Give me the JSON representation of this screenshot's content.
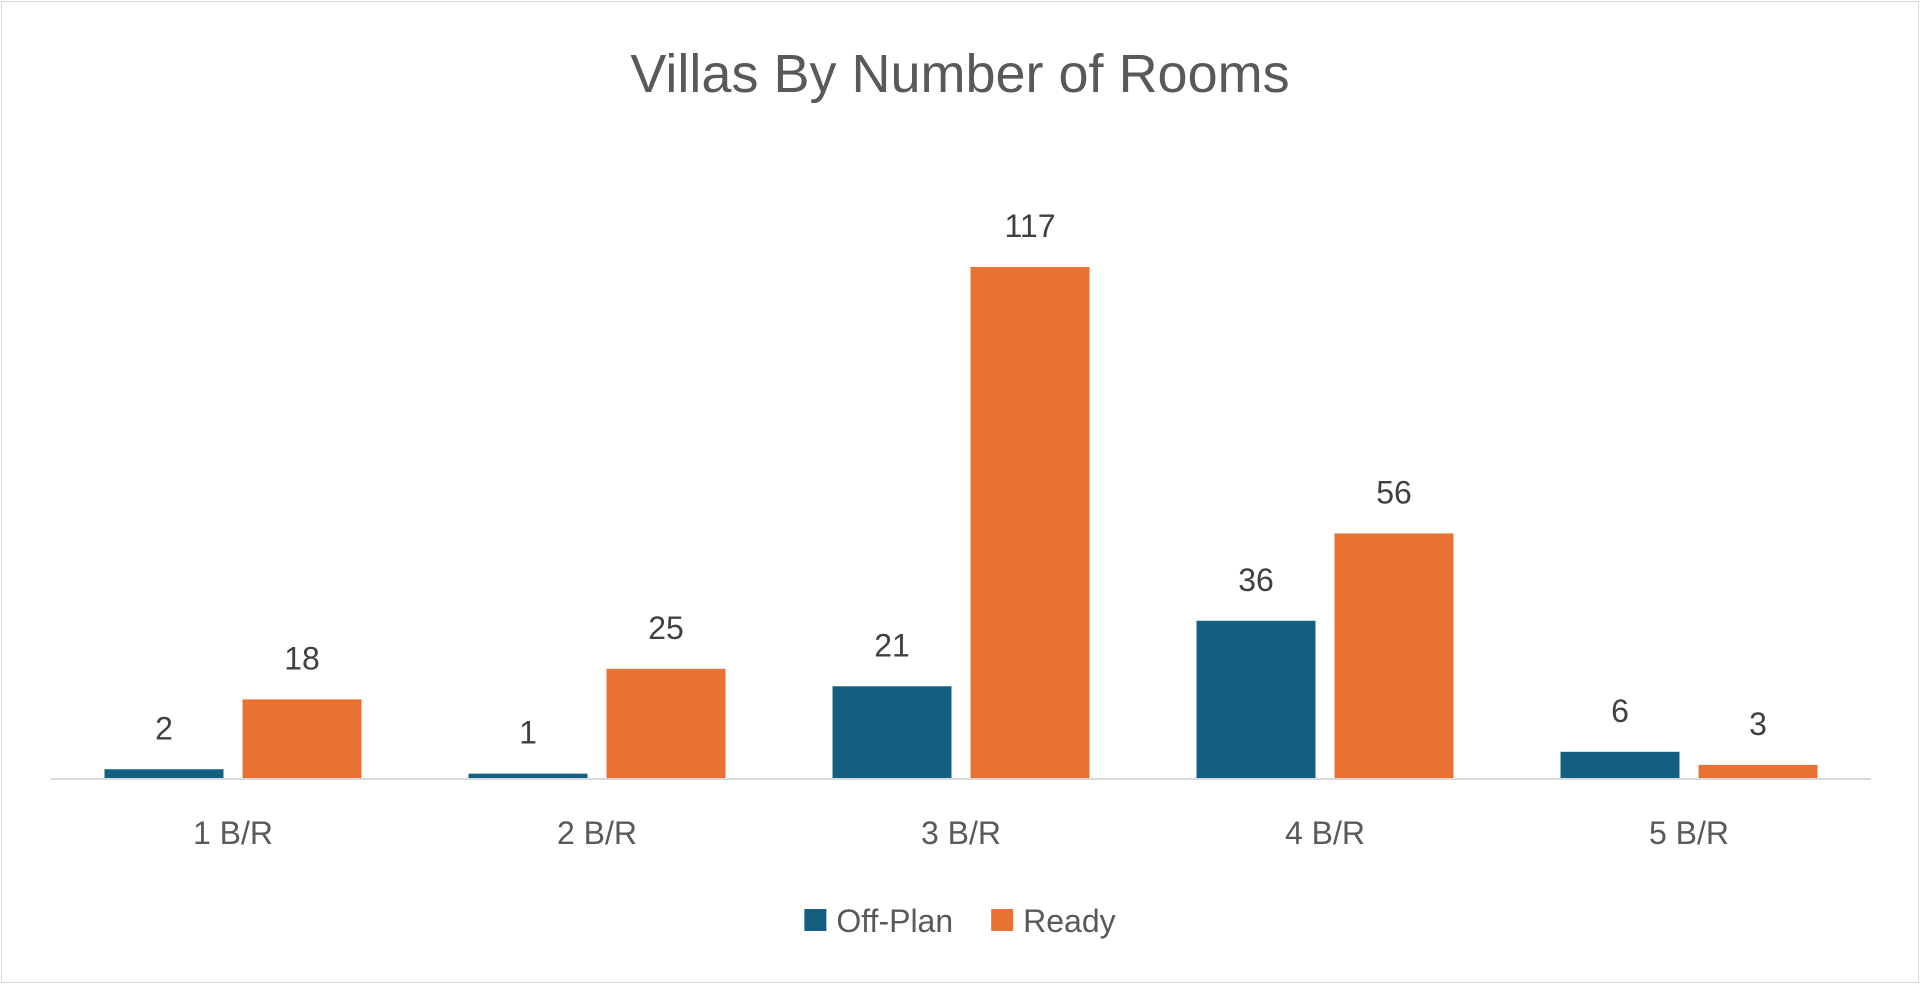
{
  "chart_data": {
    "type": "bar",
    "title": "Villas By Number of Rooms",
    "categories": [
      "1 B/R",
      "2 B/R",
      "3 B/R",
      "4 B/R",
      "5 B/R"
    ],
    "series": [
      {
        "name": "Off-Plan",
        "color": "#156082",
        "values": [
          2,
          1,
          21,
          36,
          6
        ]
      },
      {
        "name": "Ready",
        "color": "#E97132",
        "values": [
          18,
          25,
          117,
          56,
          3
        ]
      }
    ],
    "xlabel": "",
    "ylabel": "",
    "ylim": [
      0,
      117
    ],
    "grid": false,
    "legend": "bottom",
    "axis_color": "#d9d9d9"
  }
}
